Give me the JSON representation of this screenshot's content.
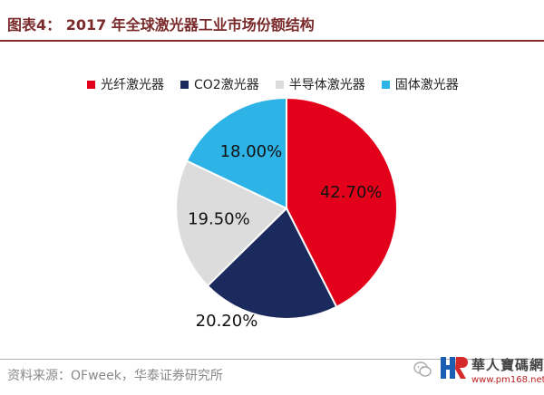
{
  "header": {
    "title": "图表4： 2017 年全球激光器工业市场份额结构"
  },
  "chart_data": {
    "type": "pie",
    "title": "图表4： 2017 年全球激光器工业市场份额结构",
    "legend_position": "top",
    "categories": [
      "光纤激光器",
      "CO2激光器",
      "半导体激光器",
      "固体激光器"
    ],
    "values": [
      42.7,
      20.2,
      19.5,
      18.0
    ],
    "labels": [
      "42.70%",
      "20.20%",
      "19.50%",
      "18.00%"
    ],
    "colors": [
      "#e3001b",
      "#1a2a5c",
      "#dcdcdc",
      "#2eb3e6"
    ],
    "label_colors": [
      "#111111",
      "#111111",
      "#111111",
      "#111111"
    ]
  },
  "footer": {
    "source": "资料来源：OFweek，华泰证券研究所"
  },
  "watermark": {
    "logo_icon": "hr-logo-icon",
    "name": "華人寶碼網",
    "url": "www.pm168.net"
  },
  "icons": {
    "wechat": "wechat-icon"
  }
}
